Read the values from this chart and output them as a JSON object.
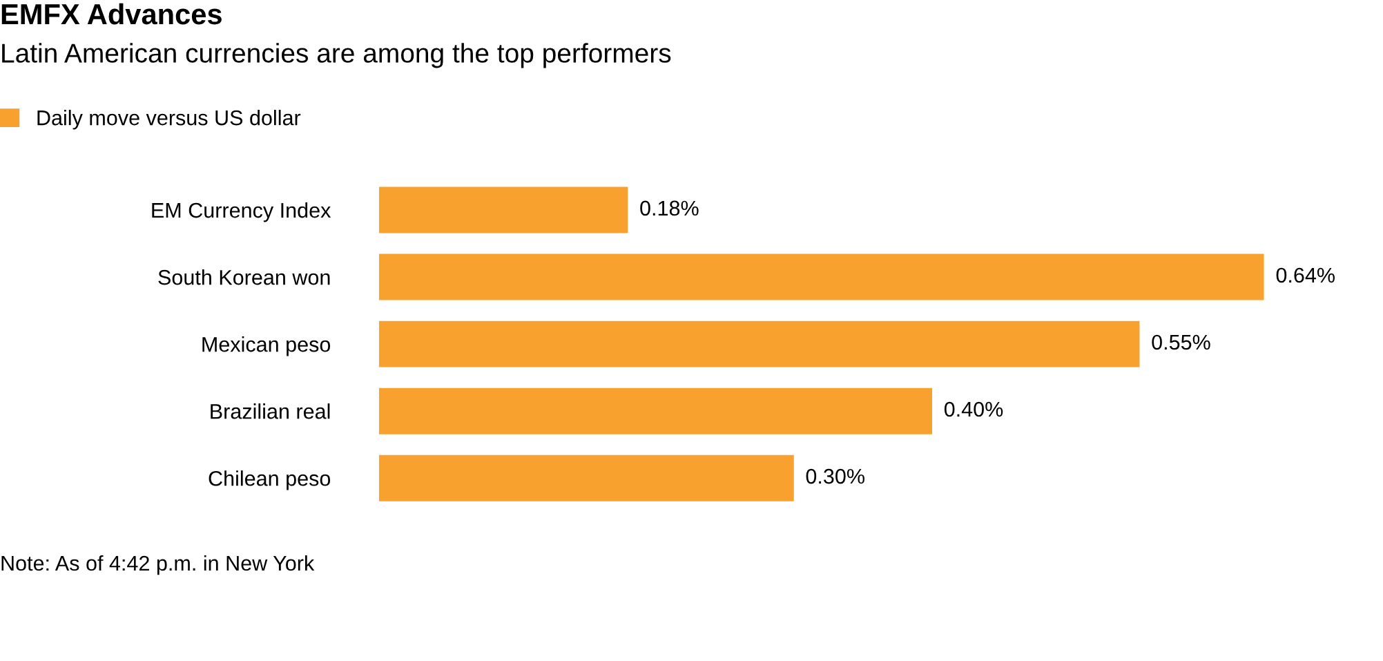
{
  "chart_data": {
    "type": "bar",
    "orientation": "horizontal",
    "title": "EMFX Advances",
    "subtitle": "Latin American currencies are among the top performers",
    "categories": [
      "EM Currency Index",
      "South Korean won",
      "Mexican peso",
      "Brazilian real",
      "Chilean peso"
    ],
    "series": [
      {
        "name": "Daily move versus US dollar",
        "color": "#f9a12e",
        "values": [
          0.18,
          0.64,
          0.55,
          0.4,
          0.3
        ],
        "value_labels": [
          "0.18%",
          "0.64%",
          "0.55%",
          "0.40%",
          "0.30%"
        ]
      }
    ],
    "legend": "top left",
    "grid": false,
    "tick_labels": false,
    "annotations": [
      "Note: As of 4:42 p.m. in New York"
    ]
  }
}
